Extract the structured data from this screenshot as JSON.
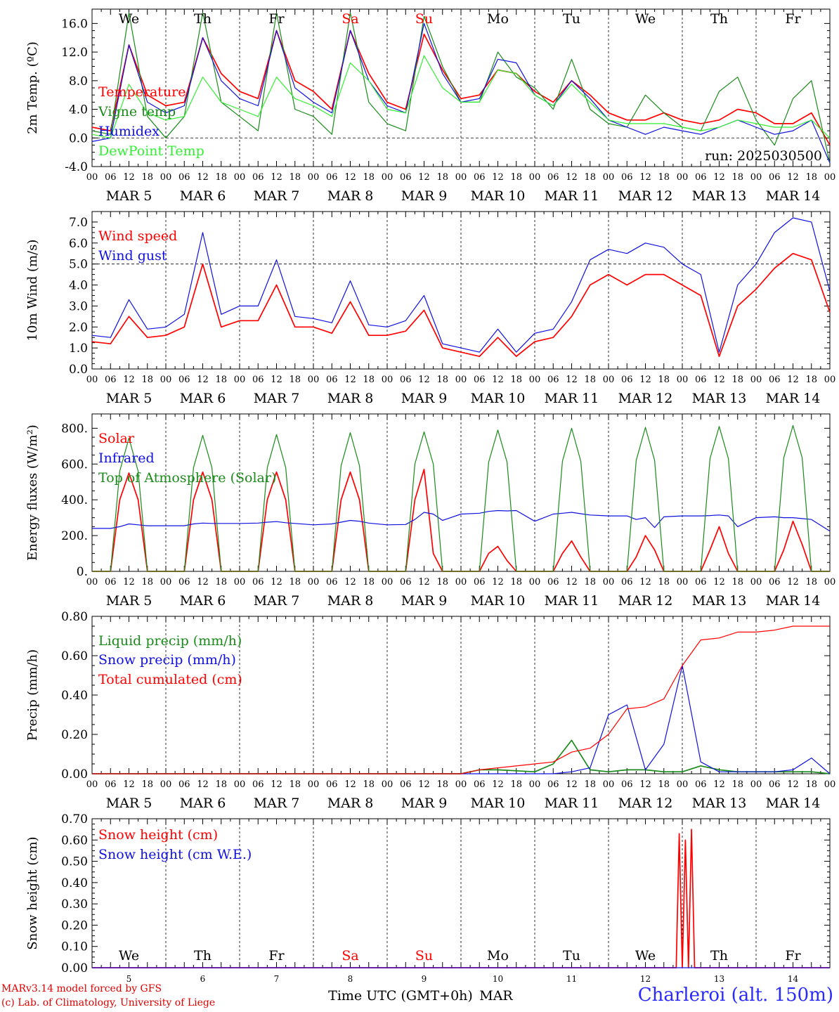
{
  "run_label": "run: 2025030500",
  "colors": {
    "red": "#ff0000",
    "green": "#1a8a1a",
    "blue": "#1010e0",
    "lightgreen": "#33ee33",
    "frame": "#000000"
  },
  "days": [
    {
      "dow": "We",
      "dow_color": "#000000",
      "date": "MAR  5",
      "num": "5"
    },
    {
      "dow": "Th",
      "dow_color": "#000000",
      "date": "MAR  6",
      "num": "6"
    },
    {
      "dow": "Fr",
      "dow_color": "#000000",
      "date": "MAR  7",
      "num": "7"
    },
    {
      "dow": "Sa",
      "dow_color": "#ff0000",
      "date": "MAR  8",
      "num": "8"
    },
    {
      "dow": "Su",
      "dow_color": "#ff0000",
      "date": "MAR  9",
      "num": "9"
    },
    {
      "dow": "Mo",
      "dow_color": "#000000",
      "date": "MAR 10",
      "num": "10"
    },
    {
      "dow": "Tu",
      "dow_color": "#000000",
      "date": "MAR 11",
      "num": "11"
    },
    {
      "dow": "We",
      "dow_color": "#000000",
      "date": "MAR 12",
      "num": "12"
    },
    {
      "dow": "Th",
      "dow_color": "#000000",
      "date": "MAR 13",
      "num": "13"
    },
    {
      "dow": "Fr",
      "dow_color": "#000000",
      "date": "MAR 14",
      "num": "14"
    }
  ],
  "hour_labels": [
    "00",
    "06",
    "12",
    "18"
  ],
  "last_hour_label": "00",
  "xaxis_title": "Time UTC (GMT+0h)",
  "xaxis_month": "MAR",
  "footer": {
    "line1": "MARv3.14 model forced by GFS",
    "line2": "(c) Lab. of Climatology, University of Liege",
    "station": "Charleroi (alt. 150m)"
  },
  "chart_data": [
    {
      "type": "line",
      "ylabel": "2m Temp. (ºC)",
      "ylim": [
        -4,
        18
      ],
      "yticks": [
        -4,
        0,
        4,
        8,
        12,
        16
      ],
      "ytick_labels": [
        "-4.0",
        "0.0",
        "4.0",
        "8.0",
        "12.0",
        "16.0"
      ],
      "dashed_refline": 0,
      "show_dow": true,
      "x_hours": [
        0,
        6,
        12,
        18,
        24,
        30,
        36,
        42,
        48,
        54,
        60,
        66,
        72,
        78,
        84,
        90,
        96,
        102,
        108,
        114,
        120,
        126,
        132,
        138,
        144,
        150,
        156,
        162,
        168,
        174,
        180,
        186,
        192,
        198,
        204,
        210,
        216,
        222,
        228,
        234,
        240
      ],
      "series": [
        {
          "name": "Temperature",
          "color": "#ff0000",
          "values": [
            1.5,
            1.0,
            13.0,
            6.0,
            4.5,
            5.0,
            14.0,
            9.0,
            6.5,
            5.5,
            15.0,
            8.0,
            6.5,
            4.0,
            15.0,
            9.0,
            5.0,
            4.0,
            14.5,
            9.5,
            5.5,
            6.0,
            9.5,
            9.0,
            6.5,
            5.0,
            8.0,
            6.0,
            3.5,
            2.5,
            2.5,
            3.5,
            2.5,
            2.0,
            2.5,
            4.0,
            3.5,
            2.0,
            2.0,
            3.5,
            -1.0
          ]
        },
        {
          "name": "Vigne temp",
          "color": "#1a8a1a",
          "values": [
            1.0,
            0.5,
            17.5,
            3.0,
            0.0,
            3.0,
            17.5,
            5.0,
            3.0,
            1.0,
            17.5,
            4.0,
            3.0,
            0.5,
            17.5,
            5.0,
            2.0,
            1.0,
            17.0,
            10.0,
            5.0,
            5.0,
            12.0,
            8.5,
            7.0,
            4.0,
            11.0,
            4.0,
            2.0,
            1.5,
            6.0,
            3.5,
            1.5,
            1.0,
            6.5,
            8.5,
            2.5,
            -1.0,
            5.5,
            8.0,
            -3.5
          ]
        },
        {
          "name": "Humidex",
          "color": "#1010e0",
          "values": [
            -0.5,
            0.0,
            13.0,
            5.0,
            3.5,
            4.5,
            14.0,
            8.0,
            5.5,
            4.5,
            15.0,
            7.0,
            5.0,
            3.5,
            15.0,
            8.0,
            4.5,
            3.5,
            16.0,
            9.0,
            5.0,
            5.5,
            11.0,
            10.5,
            6.0,
            4.5,
            8.0,
            5.5,
            2.5,
            1.5,
            0.5,
            1.5,
            1.0,
            0.5,
            1.5,
            2.5,
            1.5,
            0.5,
            1.0,
            2.5,
            -3.5
          ]
        },
        {
          "name": "DewPoint Temp",
          "color": "#33ee33",
          "values": [
            0.5,
            0.0,
            7.5,
            3.5,
            2.5,
            3.0,
            8.5,
            5.0,
            4.0,
            3.0,
            8.5,
            5.5,
            4.5,
            3.0,
            10.5,
            8.0,
            4.0,
            3.5,
            11.5,
            7.0,
            5.0,
            5.0,
            9.5,
            9.0,
            6.0,
            4.5,
            7.5,
            5.0,
            2.5,
            2.0,
            2.0,
            2.0,
            1.5,
            1.0,
            1.5,
            2.5,
            2.0,
            1.5,
            1.5,
            2.5,
            0.0
          ]
        }
      ]
    },
    {
      "type": "line",
      "ylabel": "10m Wind (m/s)",
      "ylim": [
        0,
        7.5
      ],
      "yticks": [
        0,
        1,
        2,
        3,
        4,
        5,
        6,
        7
      ],
      "ytick_labels": [
        "0.0",
        "1.0",
        "2.0",
        "3.0",
        "4.0",
        "5.0",
        "6.0",
        "7.0"
      ],
      "dashed_refline": 5,
      "show_dow": false,
      "x_hours": [
        0,
        6,
        12,
        18,
        24,
        30,
        36,
        42,
        48,
        54,
        60,
        66,
        72,
        78,
        84,
        90,
        96,
        102,
        108,
        114,
        120,
        126,
        132,
        138,
        144,
        150,
        156,
        162,
        168,
        174,
        180,
        186,
        192,
        198,
        204,
        210,
        216,
        222,
        228,
        234,
        240
      ],
      "series": [
        {
          "name": "Wind speed",
          "color": "#ff0000",
          "values": [
            1.3,
            1.2,
            2.5,
            1.5,
            1.6,
            2.0,
            5.0,
            2.0,
            2.3,
            2.3,
            4.0,
            2.0,
            2.0,
            1.7,
            3.2,
            1.6,
            1.6,
            1.8,
            2.8,
            1.0,
            0.8,
            0.6,
            1.5,
            0.6,
            1.3,
            1.5,
            2.5,
            4.0,
            4.5,
            4.0,
            4.5,
            4.5,
            4.0,
            3.5,
            0.6,
            3.0,
            3.8,
            4.8,
            5.5,
            5.2,
            2.7
          ]
        },
        {
          "name": "Wind gust",
          "color": "#1010e0",
          "values": [
            1.6,
            1.5,
            3.3,
            1.9,
            2.0,
            2.6,
            6.5,
            2.6,
            3.0,
            3.0,
            5.2,
            2.5,
            2.4,
            2.2,
            4.2,
            2.1,
            2.0,
            2.3,
            3.5,
            1.2,
            1.0,
            0.8,
            1.9,
            0.8,
            1.7,
            1.9,
            3.2,
            5.2,
            5.7,
            5.5,
            6.0,
            5.8,
            5.0,
            4.5,
            0.8,
            4.0,
            5.0,
            6.5,
            7.2,
            7.0,
            3.7
          ]
        }
      ]
    },
    {
      "type": "line",
      "ylabel": "Energy fluxes (W/m²)",
      "ylim": [
        0,
        880
      ],
      "yticks": [
        0,
        200,
        400,
        600,
        800
      ],
      "ytick_labels": [
        "0.",
        "200.",
        "400.",
        "600.",
        "800."
      ],
      "dashed_refline": null,
      "show_dow": false,
      "x_hours": [
        0,
        6,
        9,
        12,
        15,
        18,
        24,
        30,
        33,
        36,
        39,
        42,
        48,
        54,
        57,
        60,
        63,
        66,
        72,
        78,
        81,
        84,
        87,
        90,
        96,
        102,
        105,
        108,
        111,
        114,
        120,
        126,
        129,
        132,
        135,
        138,
        144,
        150,
        153,
        156,
        159,
        162,
        168,
        174,
        177,
        180,
        183,
        186,
        192,
        198,
        201,
        204,
        207,
        210,
        216,
        222,
        225,
        228,
        231,
        234,
        240
      ],
      "series": [
        {
          "name": "Solar",
          "color": "#ff0000",
          "values": [
            0,
            0,
            400,
            550,
            400,
            0,
            0,
            0,
            400,
            555,
            400,
            0,
            0,
            0,
            400,
            555,
            400,
            0,
            0,
            0,
            400,
            555,
            400,
            0,
            0,
            0,
            400,
            570,
            100,
            0,
            0,
            0,
            100,
            140,
            60,
            0,
            0,
            0,
            100,
            170,
            80,
            0,
            0,
            0,
            80,
            200,
            120,
            0,
            0,
            0,
            120,
            250,
            100,
            0,
            0,
            0,
            120,
            280,
            150,
            0,
            0
          ]
        },
        {
          "name": "Infrared",
          "color": "#1010e0",
          "values": [
            240,
            240,
            250,
            265,
            260,
            255,
            255,
            255,
            265,
            270,
            268,
            268,
            268,
            270,
            275,
            278,
            272,
            268,
            260,
            265,
            275,
            285,
            280,
            270,
            260,
            262,
            290,
            330,
            320,
            285,
            320,
            325,
            335,
            340,
            338,
            340,
            280,
            320,
            325,
            330,
            322,
            315,
            310,
            310,
            290,
            300,
            245,
            305,
            310,
            310,
            312,
            315,
            310,
            250,
            300,
            305,
            300,
            300,
            295,
            290,
            225
          ]
        },
        {
          "name": "Top of Atmosphere (Solar)",
          "color": "#1a8a1a",
          "values": [
            0,
            0,
            560,
            745,
            560,
            0,
            0,
            0,
            580,
            760,
            580,
            0,
            0,
            0,
            580,
            765,
            580,
            0,
            0,
            0,
            590,
            775,
            590,
            0,
            0,
            0,
            600,
            780,
            600,
            0,
            0,
            0,
            610,
            790,
            610,
            0,
            0,
            0,
            615,
            800,
            615,
            0,
            0,
            0,
            620,
            805,
            620,
            0,
            0,
            0,
            630,
            810,
            630,
            0,
            0,
            0,
            635,
            815,
            635,
            0,
            0
          ]
        }
      ]
    },
    {
      "type": "line",
      "ylabel": "Precip (mm/h)",
      "ylim": [
        0,
        0.8
      ],
      "yticks": [
        0,
        0.2,
        0.4,
        0.6,
        0.8
      ],
      "ytick_labels": [
        "0.00",
        "0.20",
        "0.40",
        "0.60",
        "0.80"
      ],
      "dashed_refline": null,
      "show_dow": false,
      "x_hours": [
        0,
        120,
        126,
        132,
        144,
        150,
        156,
        162,
        168,
        174,
        180,
        186,
        192,
        198,
        204,
        210,
        216,
        222,
        228,
        234,
        240
      ],
      "series": [
        {
          "name": "Liquid precip (mm/h)",
          "color": "#1a8a1a",
          "values": [
            0,
            0,
            0.02,
            0.02,
            0.01,
            0.05,
            0.17,
            0.02,
            0.01,
            0.02,
            0.02,
            0.01,
            0.01,
            0.04,
            0.02,
            0.01,
            0.01,
            0.01,
            0.01,
            0.01,
            0
          ]
        },
        {
          "name": "Snow precip (mm/h)",
          "color": "#1010e0",
          "values": [
            0,
            0,
            0,
            0,
            0,
            0,
            0.01,
            0.03,
            0.3,
            0.35,
            0.02,
            0.15,
            0.55,
            0.06,
            0.01,
            0.01,
            0.01,
            0.01,
            0.02,
            0.08,
            0
          ]
        },
        {
          "name": "Total cumulated (cm)",
          "color": "#ff0000",
          "values": [
            0,
            0,
            0.02,
            0.03,
            0.05,
            0.06,
            0.11,
            0.13,
            0.2,
            0.33,
            0.34,
            0.38,
            0.55,
            0.68,
            0.69,
            0.72,
            0.72,
            0.73,
            0.75,
            0.75,
            0.75
          ]
        }
      ]
    },
    {
      "type": "line",
      "ylabel": "Snow height (cm)",
      "ylim": [
        0,
        0.7
      ],
      "yticks": [
        0,
        0.1,
        0.2,
        0.3,
        0.4,
        0.5,
        0.6,
        0.7
      ],
      "ytick_labels": [
        "0.00",
        "0.10",
        "0.20",
        "0.30",
        "0.40",
        "0.50",
        "0.60",
        "0.70"
      ],
      "dashed_refline": null,
      "show_dow": true,
      "x_hours": [
        0,
        190,
        191,
        192,
        193,
        194,
        195,
        196,
        197,
        240
      ],
      "series": [
        {
          "name": "Snow height (cm)",
          "color": "#ff0000",
          "values": [
            0,
            0,
            0.63,
            0,
            0.6,
            0,
            0.65,
            0,
            0,
            0
          ]
        },
        {
          "name": "Snow height (cm W.E.)",
          "color": "#1010e0",
          "values": [
            0,
            0,
            0,
            0,
            0,
            0,
            0,
            0,
            0,
            0
          ]
        }
      ]
    }
  ]
}
